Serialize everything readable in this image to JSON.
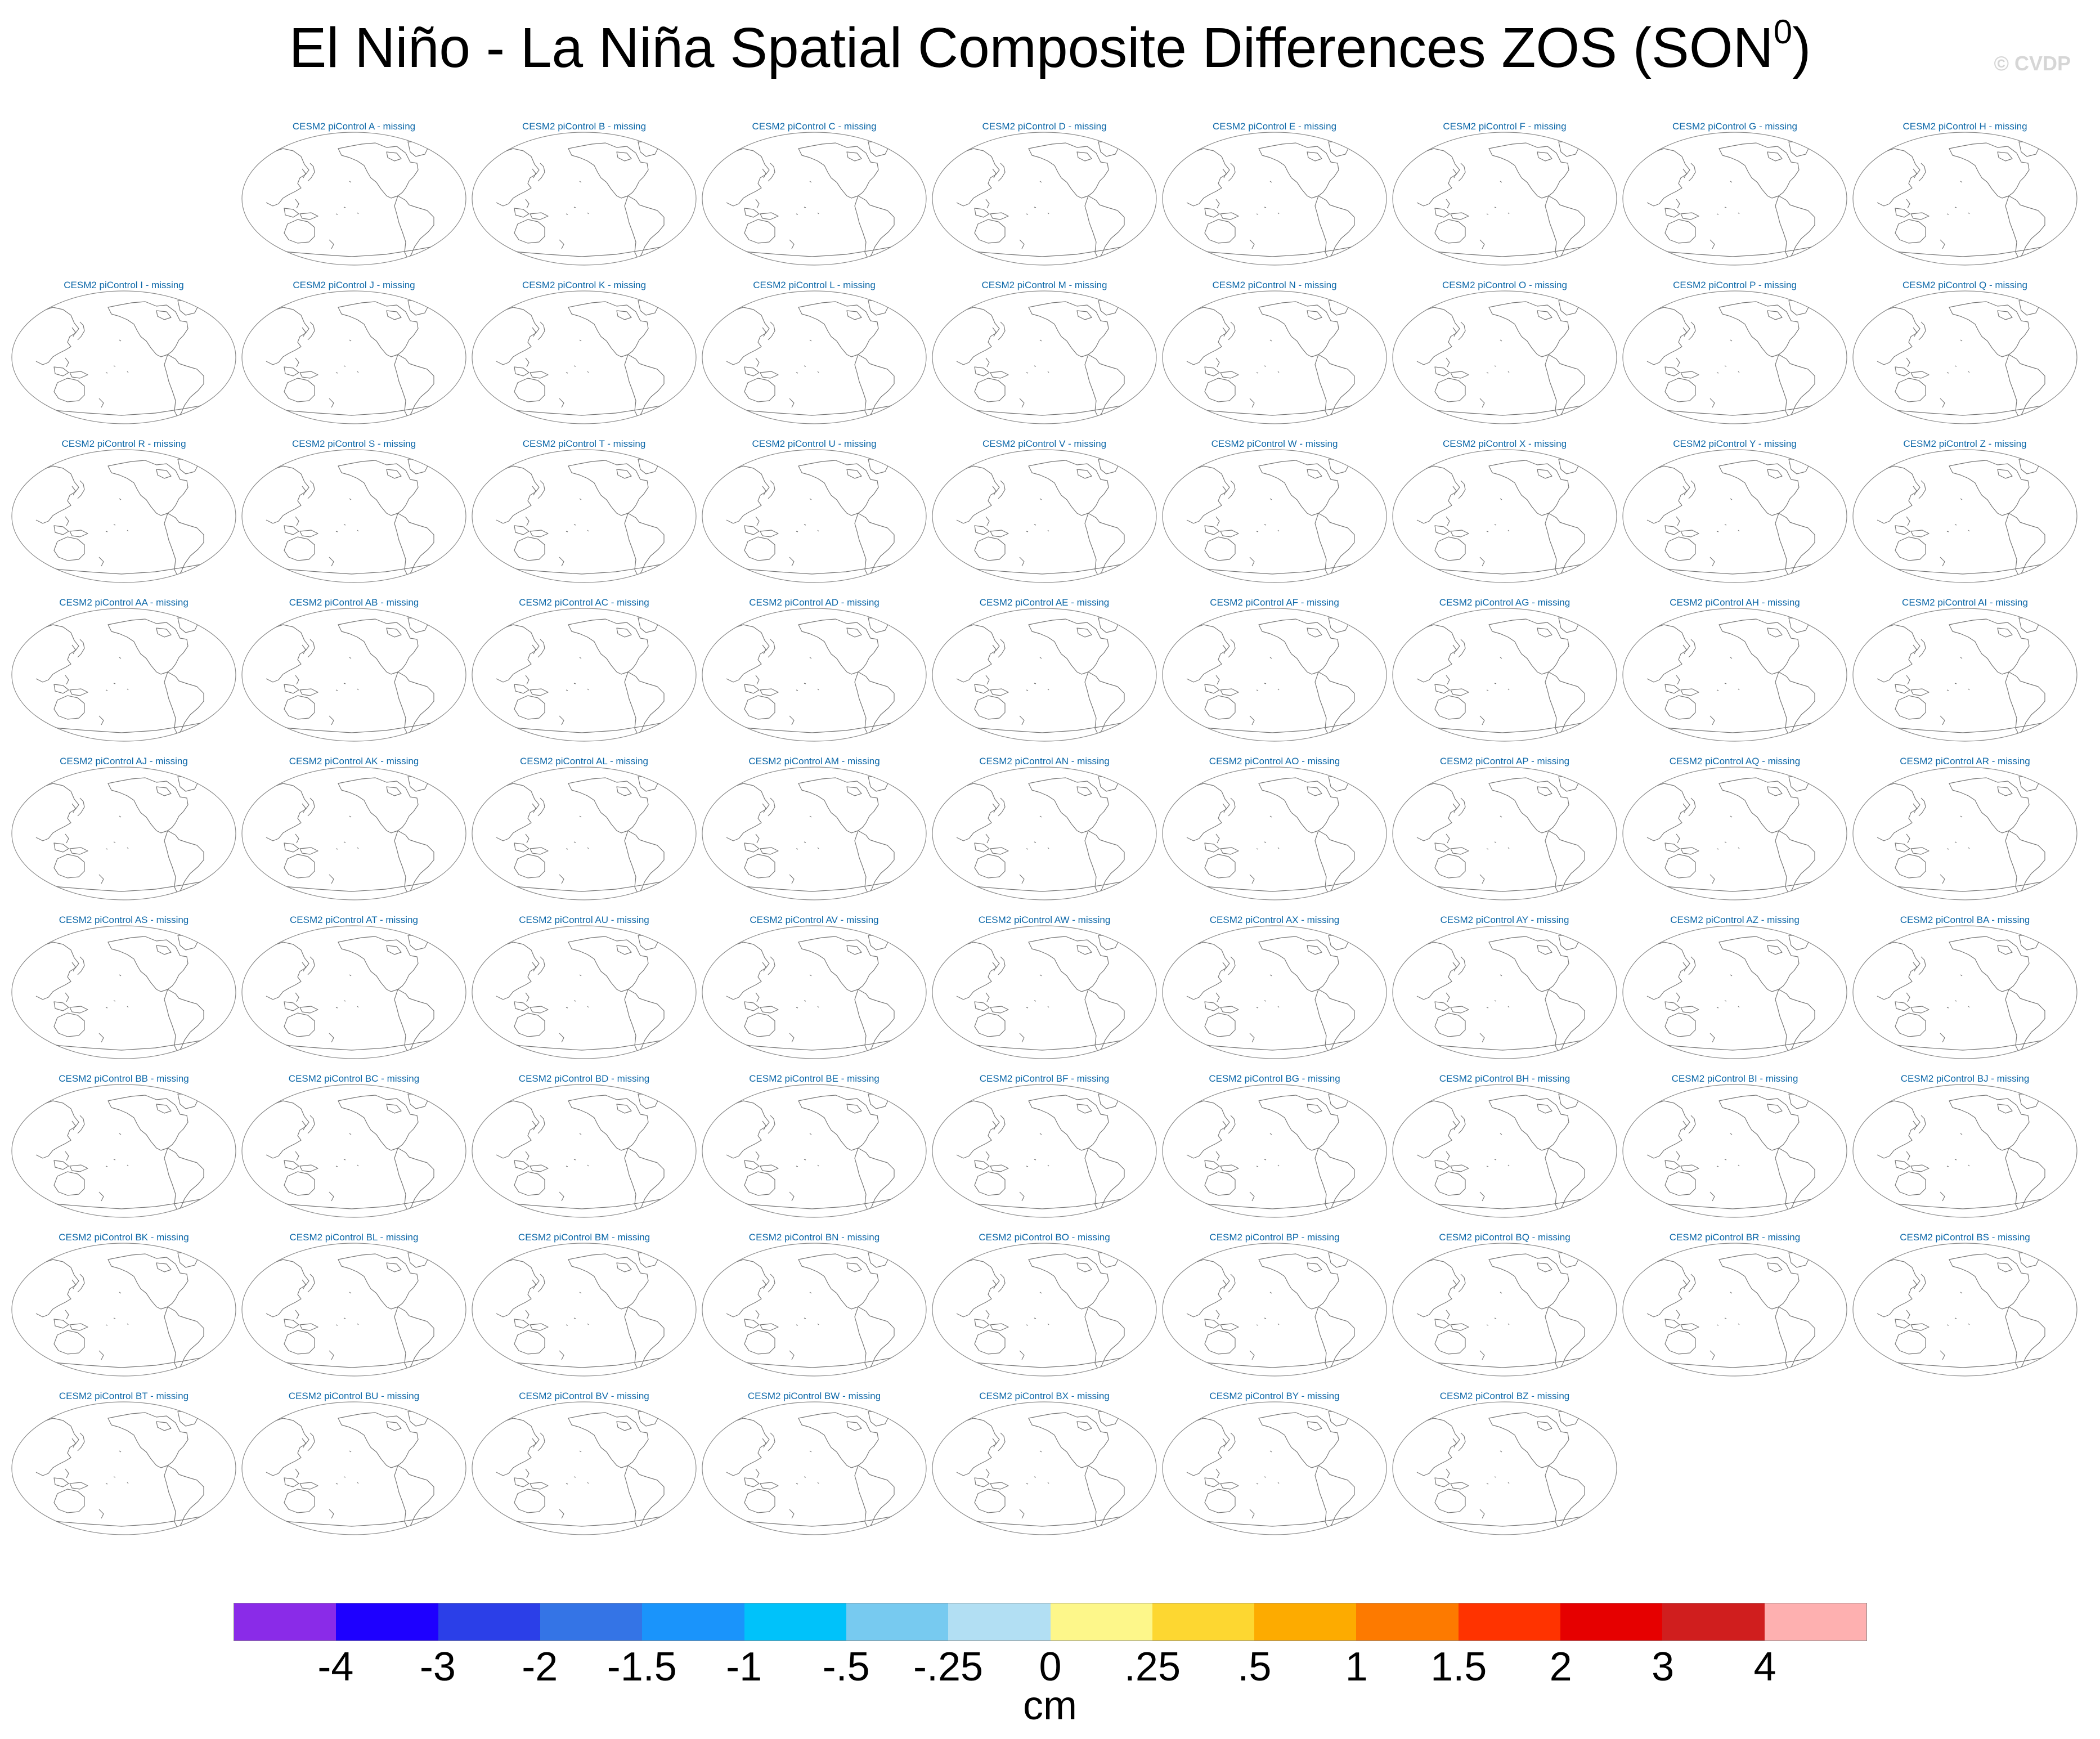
{
  "figure": {
    "title_main": "El Niño - La Niña Spatial Composite Differences ZOS (SON",
    "title_sup": "0",
    "title_close": ")",
    "credit": "© CVDP",
    "units": "cm"
  },
  "panels": [
    {
      "label": "CESM2 piControl A - missing"
    },
    {
      "label": "CESM2 piControl B - missing"
    },
    {
      "label": "CESM2 piControl C - missing"
    },
    {
      "label": "CESM2 piControl D - missing"
    },
    {
      "label": "CESM2 piControl E - missing"
    },
    {
      "label": "CESM2 piControl F - missing"
    },
    {
      "label": "CESM2 piControl G - missing"
    },
    {
      "label": "CESM2 piControl H - missing"
    },
    {
      "label": "CESM2 piControl I - missing"
    },
    {
      "label": "CESM2 piControl J - missing"
    },
    {
      "label": "CESM2 piControl K - missing"
    },
    {
      "label": "CESM2 piControl L - missing"
    },
    {
      "label": "CESM2 piControl M - missing"
    },
    {
      "label": "CESM2 piControl N - missing"
    },
    {
      "label": "CESM2 piControl O - missing"
    },
    {
      "label": "CESM2 piControl P - missing"
    },
    {
      "label": "CESM2 piControl Q - missing"
    },
    {
      "label": "CESM2 piControl R - missing"
    },
    {
      "label": "CESM2 piControl S - missing"
    },
    {
      "label": "CESM2 piControl T - missing"
    },
    {
      "label": "CESM2 piControl U - missing"
    },
    {
      "label": "CESM2 piControl V - missing"
    },
    {
      "label": "CESM2 piControl W - missing"
    },
    {
      "label": "CESM2 piControl X - missing"
    },
    {
      "label": "CESM2 piControl Y - missing"
    },
    {
      "label": "CESM2 piControl Z - missing"
    },
    {
      "label": "CESM2 piControl AA - missing"
    },
    {
      "label": "CESM2 piControl AB - missing"
    },
    {
      "label": "CESM2 piControl AC - missing"
    },
    {
      "label": "CESM2 piControl AD - missing"
    },
    {
      "label": "CESM2 piControl AE - missing"
    },
    {
      "label": "CESM2 piControl AF - missing"
    },
    {
      "label": "CESM2 piControl AG - missing"
    },
    {
      "label": "CESM2 piControl AH - missing"
    },
    {
      "label": "CESM2 piControl AI - missing"
    },
    {
      "label": "CESM2 piControl AJ - missing"
    },
    {
      "label": "CESM2 piControl AK - missing"
    },
    {
      "label": "CESM2 piControl AL - missing"
    },
    {
      "label": "CESM2 piControl AM - missing"
    },
    {
      "label": "CESM2 piControl AN - missing"
    },
    {
      "label": "CESM2 piControl AO - missing"
    },
    {
      "label": "CESM2 piControl AP - missing"
    },
    {
      "label": "CESM2 piControl AQ - missing"
    },
    {
      "label": "CESM2 piControl AR - missing"
    },
    {
      "label": "CESM2 piControl AS - missing"
    },
    {
      "label": "CESM2 piControl AT - missing"
    },
    {
      "label": "CESM2 piControl AU - missing"
    },
    {
      "label": "CESM2 piControl AV - missing"
    },
    {
      "label": "CESM2 piControl AW - missing"
    },
    {
      "label": "CESM2 piControl AX - missing"
    },
    {
      "label": "CESM2 piControl AY - missing"
    },
    {
      "label": "CESM2 piControl AZ - missing"
    },
    {
      "label": "CESM2 piControl BA - missing"
    },
    {
      "label": "CESM2 piControl BB - missing"
    },
    {
      "label": "CESM2 piControl BC - missing"
    },
    {
      "label": "CESM2 piControl BD - missing"
    },
    {
      "label": "CESM2 piControl BE - missing"
    },
    {
      "label": "CESM2 piControl BF - missing"
    },
    {
      "label": "CESM2 piControl BG - missing"
    },
    {
      "label": "CESM2 piControl BH - missing"
    },
    {
      "label": "CESM2 piControl BI - missing"
    },
    {
      "label": "CESM2 piControl BJ - missing"
    },
    {
      "label": "CESM2 piControl BK - missing"
    },
    {
      "label": "CESM2 piControl BL - missing"
    },
    {
      "label": "CESM2 piControl BM - missing"
    },
    {
      "label": "CESM2 piControl BN - missing"
    },
    {
      "label": "CESM2 piControl BO - missing"
    },
    {
      "label": "CESM2 piControl BP - missing"
    },
    {
      "label": "CESM2 piControl BQ - missing"
    },
    {
      "label": "CESM2 piControl BR - missing"
    },
    {
      "label": "CESM2 piControl BS - missing"
    },
    {
      "label": "CESM2 piControl BT - missing"
    },
    {
      "label": "CESM2 piControl BU - missing"
    },
    {
      "label": "CESM2 piControl BV - missing"
    },
    {
      "label": "CESM2 piControl BW - missing"
    },
    {
      "label": "CESM2 piControl BX - missing"
    },
    {
      "label": "CESM2 piControl BY - missing"
    },
    {
      "label": "CESM2 piControl BZ - missing"
    }
  ],
  "colorbar": {
    "colors": [
      "#8a2be8",
      "#1e00ff",
      "#2b3fe8",
      "#3474e6",
      "#1a94fb",
      "#00c2fa",
      "#77caf0",
      "#b2dff3",
      "#fdf78a",
      "#fdd731",
      "#fdab00",
      "#fd7a00",
      "#ff3300",
      "#e60000",
      "#d01e1e",
      "#feb0b0"
    ],
    "labels": [
      "-4",
      "-3",
      "-2",
      "-1.5",
      "-1",
      "-.5",
      "-.25",
      "0",
      ".25",
      ".5",
      "1",
      "1.5",
      "2",
      "3",
      "4"
    ]
  }
}
